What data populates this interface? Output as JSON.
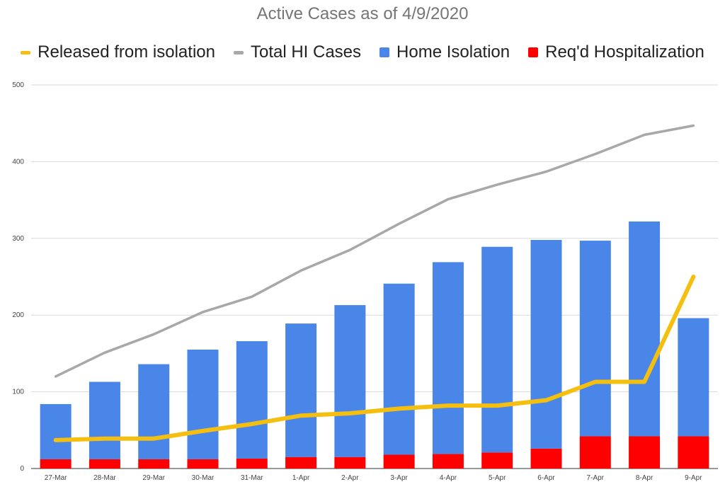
{
  "chart_data": {
    "type": "bar",
    "title": "Active Cases as of 4/9/2020",
    "categories": [
      "27-Mar",
      "28-Mar",
      "29-Mar",
      "30-Mar",
      "31-Mar",
      "1-Apr",
      "2-Apr",
      "3-Apr",
      "4-Apr",
      "5-Apr",
      "6-Apr",
      "7-Apr",
      "8-Apr",
      "9-Apr"
    ],
    "ylim": [
      0,
      500
    ],
    "yticks": [
      0,
      100,
      200,
      300,
      400,
      500
    ],
    "grid": true,
    "legend_position": "top",
    "series": [
      {
        "name": "Released from isolation",
        "kind": "line",
        "color": "#f5bf0f",
        "values": [
          37,
          39,
          39,
          49,
          58,
          69,
          72,
          78,
          82,
          82,
          89,
          113,
          113,
          250
        ]
      },
      {
        "name": "Total HI Cases",
        "kind": "line",
        "color": "#a8a8a8",
        "values": [
          120,
          151,
          175,
          204,
          224,
          258,
          285,
          319,
          351,
          370,
          387,
          410,
          435,
          447
        ]
      },
      {
        "name": "Home Isolation",
        "kind": "stacked-bar",
        "color": "#4a86e8",
        "values": [
          72,
          101,
          124,
          143,
          153,
          174,
          198,
          223,
          250,
          268,
          272,
          255,
          280,
          154
        ]
      },
      {
        "name": "Req'd Hospitalization",
        "kind": "stacked-bar",
        "color": "#ff0000",
        "values": [
          12,
          12,
          12,
          12,
          13,
          15,
          15,
          18,
          19,
          21,
          26,
          42,
          42,
          42
        ]
      }
    ]
  }
}
